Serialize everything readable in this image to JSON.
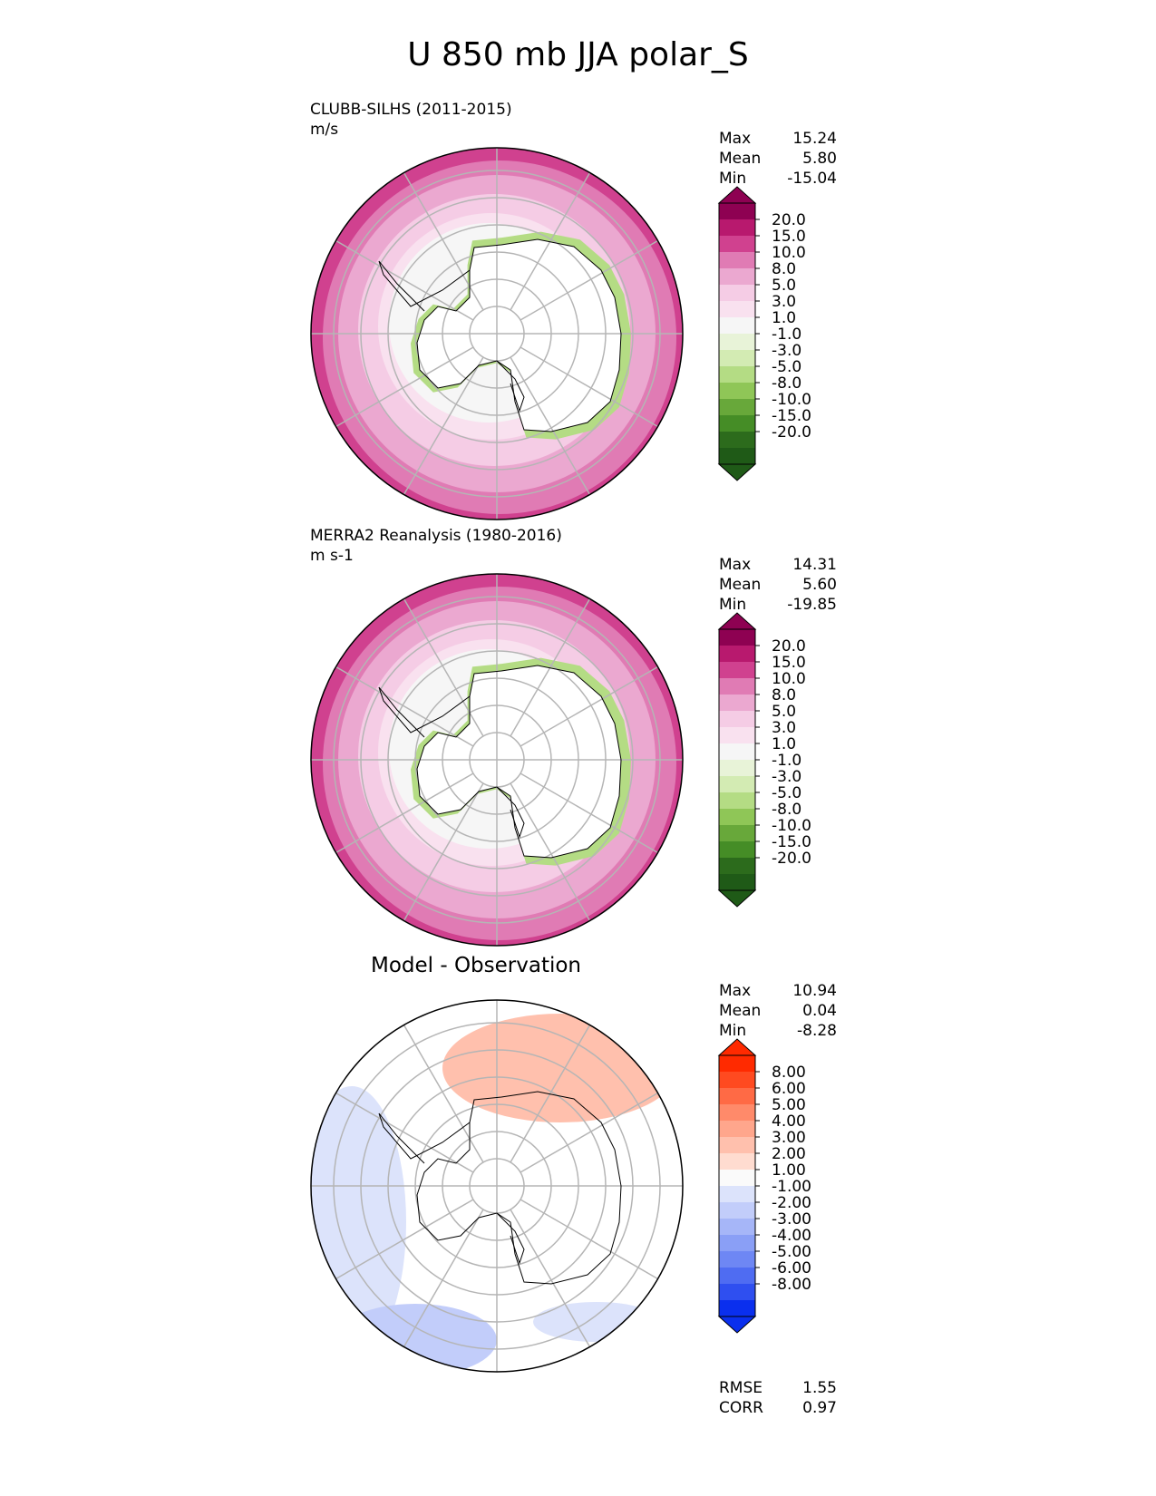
{
  "title": "U 850 mb JJA polar_S",
  "chart_data": [
    {
      "type": "heatmap",
      "projection": "south polar stereographic",
      "title": "CLUBB-SILHS (2011-2015)",
      "units": "m/s",
      "stats": {
        "Max": "15.24",
        "Mean": "5.80",
        "Min": "-15.04"
      },
      "colorbar": {
        "levels": [
          "20.0",
          "15.0",
          "10.0",
          "8.0",
          "5.0",
          "3.0",
          "1.0",
          "-1.0",
          "-3.0",
          "-5.0",
          "-8.0",
          "-10.0",
          "-15.0",
          "-20.0"
        ],
        "colors": [
          "#8e0152",
          "#b8196e",
          "#d0418f",
          "#e07bb4",
          "#eba8d0",
          "#f5cce5",
          "#f9e1ef",
          "#f6f6f6",
          "#e8f3d8",
          "#d3ebb3",
          "#b4dc84",
          "#8fc657",
          "#68a83a",
          "#458d26",
          "#2c6b1c",
          "#1f5a17"
        ]
      },
      "field_rings": [
        "#f6f6f6",
        "#f9e1ef",
        "#f5cce5",
        "#eba8d0",
        "#e07bb4",
        "#d0418f"
      ]
    },
    {
      "type": "heatmap",
      "projection": "south polar stereographic",
      "title": "MERRA2 Reanalysis (1980-2016)",
      "units": "m s-1",
      "stats": {
        "Max": "14.31",
        "Mean": "5.60",
        "Min": "-19.85"
      },
      "colorbar": {
        "levels": [
          "20.0",
          "15.0",
          "10.0",
          "8.0",
          "5.0",
          "3.0",
          "1.0",
          "-1.0",
          "-3.0",
          "-5.0",
          "-8.0",
          "-10.0",
          "-15.0",
          "-20.0"
        ],
        "colors": [
          "#8e0152",
          "#b8196e",
          "#d0418f",
          "#e07bb4",
          "#eba8d0",
          "#f5cce5",
          "#f9e1ef",
          "#f6f6f6",
          "#e8f3d8",
          "#d3ebb3",
          "#b4dc84",
          "#8fc657",
          "#68a83a",
          "#458d26",
          "#2c6b1c",
          "#1f5a17"
        ]
      },
      "field_rings": [
        "#f6f6f6",
        "#f9e1ef",
        "#f5cce5",
        "#eba8d0",
        "#e07bb4",
        "#d0418f"
      ]
    },
    {
      "type": "heatmap",
      "projection": "south polar stereographic",
      "title": "Model - Observation",
      "units": "",
      "stats": {
        "Max": "10.94",
        "Mean": "0.04",
        "Min": "-8.28"
      },
      "extra_stats": {
        "RMSE": "1.55",
        "CORR": "0.97"
      },
      "colorbar": {
        "levels": [
          "8.00",
          "6.00",
          "5.00",
          "4.00",
          "3.00",
          "2.00",
          "1.00",
          "-1.00",
          "-2.00",
          "-3.00",
          "-4.00",
          "-5.00",
          "-6.00",
          "-8.00"
        ],
        "colors": [
          "#ff2a00",
          "#ff4a20",
          "#ff6a45",
          "#ff8a6a",
          "#ffa68c",
          "#ffc0ad",
          "#ffdcd0",
          "#fafafa",
          "#dce3fb",
          "#c2cdfa",
          "#a6b6f8",
          "#8a9ff6",
          "#6e87f4",
          "#4f6cf2",
          "#2f4ff0",
          "#0a2fee"
        ]
      },
      "field_rings": [
        "#ffffff"
      ]
    }
  ]
}
